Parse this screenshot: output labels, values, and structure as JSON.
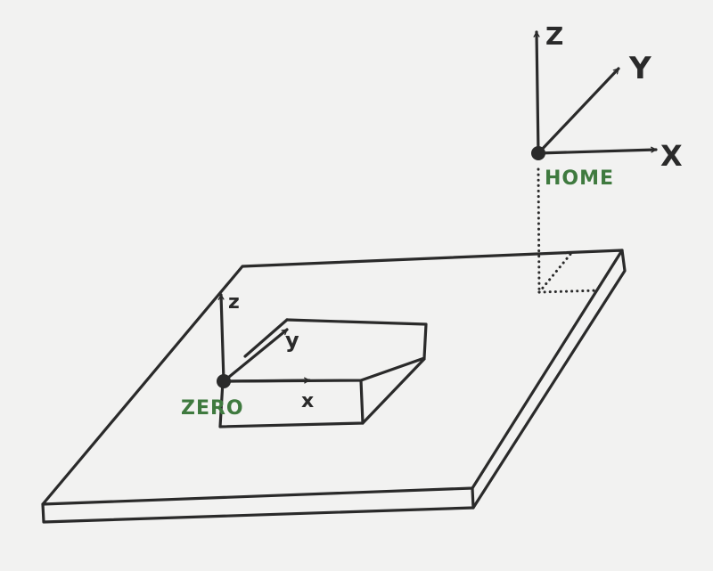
{
  "colors": {
    "ink": "#2a2a2a",
    "label_green": "#3f7a3f",
    "paper": "#f2f2f1"
  },
  "home": {
    "label": "HOME",
    "axes": {
      "x": "X",
      "y": "Y",
      "z": "Z"
    }
  },
  "zero": {
    "label": "ZERO",
    "axes": {
      "x": "x",
      "y": "y",
      "z": "z"
    }
  }
}
